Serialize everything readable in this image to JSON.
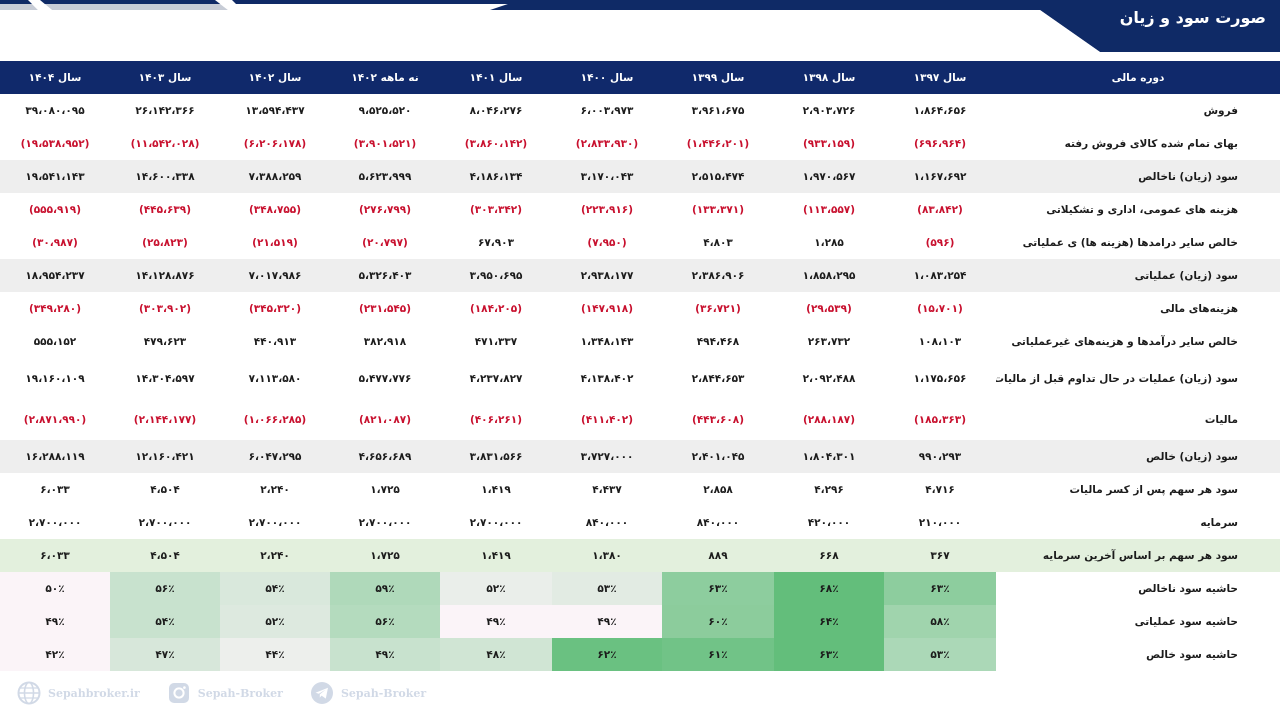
{
  "title": "صورت سود و زیان",
  "header": {
    "label": "دوره مالی",
    "columns": [
      "سال ۱۳۹۷",
      "سال ۱۳۹۸",
      "سال ۱۳۹۹",
      "سال ۱۴۰۰",
      "سال ۱۴۰۱",
      "نه ماهه ۱۴۰۲",
      "سال ۱۴۰۲",
      "سال ۱۴۰۳",
      "سال ۱۴۰۴"
    ]
  },
  "rows": [
    {
      "label": "فروش",
      "values": [
        "۱،۸۶۴،۶۵۶",
        "۲،۹۰۳،۷۲۶",
        "۳،۹۶۱،۶۷۵",
        "۶،۰۰۳،۹۷۳",
        "۸،۰۴۶،۲۷۶",
        "۹،۵۲۵،۵۲۰",
        "۱۳،۵۹۴،۴۳۷",
        "۲۶،۱۴۲،۳۶۶",
        "۳۹،۰۸۰،۰۹۵"
      ]
    },
    {
      "label": "بهای تمام شده کالای فروش رفته",
      "values": [
        "(۶۹۶،۹۶۴)",
        "(۹۳۳،۱۵۹)",
        "(۱،۴۴۶،۲۰۱)",
        "(۲،۸۳۳،۹۳۰)",
        "(۳،۸۶۰،۱۴۲)",
        "(۳،۹۰۱،۵۲۱)",
        "(۶،۲۰۶،۱۷۸)",
        "(۱۱،۵۴۲،۰۲۸)",
        "(۱۹،۵۳۸،۹۵۲)"
      ]
    },
    {
      "label": "سود (زیان) ناخالص",
      "values": [
        "۱،۱۶۷،۶۹۲",
        "۱،۹۷۰،۵۶۷",
        "۲،۵۱۵،۴۷۴",
        "۳،۱۷۰،۰۴۳",
        "۴،۱۸۶،۱۳۴",
        "۵،۶۲۳،۹۹۹",
        "۷،۳۸۸،۲۵۹",
        "۱۴،۶۰۰،۳۳۸",
        "۱۹،۵۴۱،۱۴۳"
      ]
    },
    {
      "label": "هزینه های عمومی، اداری و تشکیلاتی",
      "values": [
        "(۸۳،۸۴۲)",
        "(۱۱۳،۵۵۷)",
        "(۱۳۳،۳۷۱)",
        "(۲۲۳،۹۱۶)",
        "(۳۰۳،۳۴۲)",
        "(۲۷۶،۷۹۹)",
        "(۳۴۸،۷۵۵)",
        "(۴۴۵،۶۳۹)",
        "(۵۵۵،۹۱۹)"
      ]
    },
    {
      "label": "خالص سایر درامدها (هزینه ها) ی عملیاتی",
      "values": [
        "(۵۹۶)",
        "۱،۲۸۵",
        "۴،۸۰۳",
        "(۷،۹۵۰)",
        "۶۷،۹۰۳",
        "(۲۰،۷۹۷)",
        "(۲۱،۵۱۹)",
        "(۲۵،۸۲۳)",
        "(۳۰،۹۸۷)"
      ]
    },
    {
      "label": "سود (زیان) عملیاتی",
      "values": [
        "۱،۰۸۳،۲۵۴",
        "۱،۸۵۸،۲۹۵",
        "۲،۳۸۶،۹۰۶",
        "۲،۹۳۸،۱۷۷",
        "۳،۹۵۰،۶۹۵",
        "۵،۳۲۶،۴۰۳",
        "۷،۰۱۷،۹۸۶",
        "۱۴،۱۲۸،۸۷۶",
        "۱۸،۹۵۴،۲۳۷"
      ]
    },
    {
      "label": "هزینه‌های مالی",
      "values": [
        "(۱۵،۷۰۱)",
        "(۲۹،۵۳۹)",
        "(۳۶،۷۲۱)",
        "(۱۴۷،۹۱۸)",
        "(۱۸۴،۲۰۵)",
        "(۲۳۱،۵۴۵)",
        "(۳۴۵،۳۲۰)",
        "(۳۰۳،۹۰۲)",
        "(۳۴۹،۲۸۰)"
      ]
    },
    {
      "label": "خالص سایر درآمدها و هزینه‌های غیرعملیاتی",
      "values": [
        "۱۰۸،۱۰۳",
        "۲۶۳،۷۳۲",
        "۴۹۴،۴۶۸",
        "۱،۳۴۸،۱۴۳",
        "۴۷۱،۳۳۷",
        "۳۸۲،۹۱۸",
        "۴۴۰،۹۱۳",
        "۴۷۹،۶۲۳",
        "۵۵۵،۱۵۲"
      ]
    },
    {
      "label": "سود (زیان) عملیات در حال تداوم قبل از مالیات",
      "values": [
        "۱،۱۷۵،۶۵۶",
        "۲،۰۹۲،۴۸۸",
        "۲،۸۴۴،۶۵۳",
        "۴،۱۳۸،۴۰۲",
        "۴،۲۳۷،۸۲۷",
        "۵،۴۷۷،۷۷۶",
        "۷،۱۱۳،۵۸۰",
        "۱۴،۳۰۴،۵۹۷",
        "۱۹،۱۶۰،۱۰۹"
      ]
    },
    {
      "label": "مالیات",
      "values": [
        "(۱۸۵،۳۶۳)",
        "(۲۸۸،۱۸۷)",
        "(۴۴۳،۶۰۸)",
        "(۴۱۱،۴۰۲)",
        "(۴۰۶،۲۶۱)",
        "(۸۲۱،۰۸۷)",
        "(۱،۰۶۶،۲۸۵)",
        "(۲،۱۴۴،۱۷۷)",
        "(۲،۸۷۱،۹۹۰)"
      ]
    },
    {
      "label": "سود (زیان) خالص",
      "values": [
        "۹۹۰،۲۹۳",
        "۱،۸۰۴،۳۰۱",
        "۲،۴۰۱،۰۴۵",
        "۳،۷۲۷،۰۰۰",
        "۳،۸۳۱،۵۶۶",
        "۴،۶۵۶،۶۸۹",
        "۶،۰۴۷،۲۹۵",
        "۱۲،۱۶۰،۴۲۱",
        "۱۶،۲۸۸،۱۱۹"
      ]
    },
    {
      "label": "سود هر سهم پس از کسر مالیات",
      "values": [
        "۴،۷۱۶",
        "۴،۲۹۶",
        "۲،۸۵۸",
        "۴،۴۳۷",
        "۱،۴۱۹",
        "۱،۷۲۵",
        "۲،۲۴۰",
        "۴،۵۰۴",
        "۶،۰۳۳"
      ]
    },
    {
      "label": "سرمایه",
      "values": [
        "۲۱۰،۰۰۰",
        "۴۲۰،۰۰۰",
        "۸۴۰،۰۰۰",
        "۸۴۰،۰۰۰",
        "۲،۷۰۰،۰۰۰",
        "۲،۷۰۰،۰۰۰",
        "۲،۷۰۰،۰۰۰",
        "۲،۷۰۰،۰۰۰",
        "۲،۷۰۰،۰۰۰"
      ]
    },
    {
      "label": "سود هر سهم بر اساس آخرین سرمایه",
      "values": [
        "۳۶۷",
        "۶۶۸",
        "۸۸۹",
        "۱،۳۸۰",
        "۱،۴۱۹",
        "۱،۷۲۵",
        "۲،۲۴۰",
        "۴،۵۰۴",
        "۶،۰۳۳"
      ]
    },
    {
      "label": "حاشیه سود ناخالص",
      "values": [
        "۶۳٪",
        "۶۸٪",
        "۶۳٪",
        "۵۳٪",
        "۵۲٪",
        "۵۹٪",
        "۵۴٪",
        "۵۶٪",
        "۵۰٪"
      ],
      "levels": [
        63,
        68,
        63,
        53,
        52,
        59,
        54,
        56,
        50
      ]
    },
    {
      "label": "حاشیه سود عملیاتی",
      "values": [
        "۵۸٪",
        "۶۴٪",
        "۶۰٪",
        "۴۹٪",
        "۴۹٪",
        "۵۶٪",
        "۵۲٪",
        "۵۴٪",
        "۴۹٪"
      ],
      "levels": [
        58,
        64,
        60,
        49,
        49,
        56,
        52,
        54,
        49
      ]
    },
    {
      "label": "حاشیه سود خالص",
      "values": [
        "۵۳٪",
        "۶۳٪",
        "۶۱٪",
        "۶۲٪",
        "۴۸٪",
        "۴۹٪",
        "۴۴٪",
        "۴۷٪",
        "۴۲٪"
      ],
      "levels": [
        53,
        63,
        61,
        62,
        48,
        49,
        44,
        47,
        42
      ]
    }
  ],
  "colors": {
    "header_bg": "#10296b",
    "negative": "#c8102e",
    "shade": "#eeeeee",
    "eps_row": "#e3f0dd",
    "heat_low": "#fbf4f8",
    "heat_high": "#63be7b"
  },
  "watermarks": [
    {
      "icon": "globe-icon",
      "text": "Sepahbroker.ir"
    },
    {
      "icon": "instagram-icon",
      "text": "Sepah-Broker"
    },
    {
      "icon": "telegram-icon",
      "text": "Sepah-Broker"
    }
  ]
}
